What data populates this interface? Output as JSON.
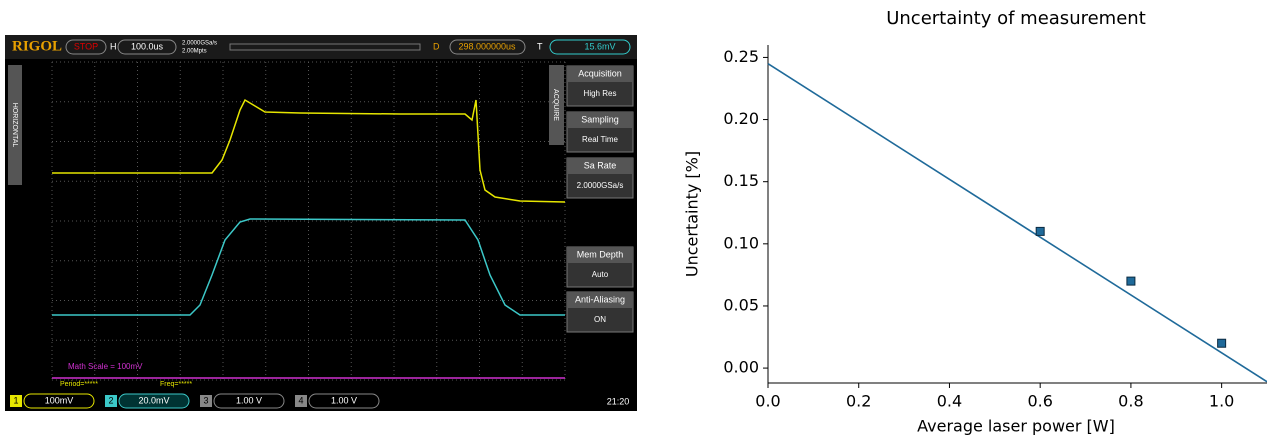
{
  "oscilloscope": {
    "brand": "RIGOL",
    "status": "STOP",
    "h_label": "H",
    "timebase": "100.0us",
    "sample_rate": "2.0000GSa/s",
    "points": "2.00Mpts",
    "d_label": "D",
    "delay": "298.000000us",
    "t_label": "T",
    "trigger": "15.6mV",
    "left_tab": "HORIZONTAL",
    "right_tab": "ACQUIRE",
    "menu": [
      {
        "title": "Acquisition",
        "value": "High Res"
      },
      {
        "title": "Sampling",
        "value": "Real Time"
      },
      {
        "title": "Sa Rate",
        "value": "2.0000GSa/s"
      },
      {
        "title": "Mem Depth",
        "value": "Auto"
      },
      {
        "title": "Anti-Aliasing",
        "value": "ON"
      }
    ],
    "math_scale": "Math Scale = 100mV",
    "period": "Period=*****",
    "freq": "Freq=*****",
    "channels": [
      {
        "id": "1",
        "scale": "100mV"
      },
      {
        "id": "2",
        "scale": "20.0mV"
      },
      {
        "id": "3",
        "scale": "1.00 V"
      },
      {
        "id": "4",
        "scale": "1.00 V"
      }
    ],
    "clock": "21:20"
  },
  "chart_data": {
    "type": "line",
    "title": "Uncertainty of measurement",
    "xlabel": "Average laser power [W]",
    "ylabel": "Uncertainty [%]",
    "series": [
      {
        "style": "line",
        "color": "#1f6a9a",
        "x": [
          0,
          1.1
        ],
        "values": [
          0.245,
          -0.011
        ]
      },
      {
        "style": "markers",
        "color": "#1f6a9a",
        "x": [
          0.6,
          0.8,
          1.0
        ],
        "values": [
          0.11,
          0.07,
          0.02
        ]
      }
    ],
    "xlim": [
      0,
      1.1
    ],
    "ylim": [
      -0.012,
      0.26
    ],
    "xticks": [
      {
        "value": 0,
        "label": "0.0"
      },
      0.2,
      0.4,
      0.6,
      0.8,
      {
        "value": 1,
        "label": "1.0"
      }
    ],
    "yticks": [
      {
        "value": 0,
        "label": "0.00"
      },
      {
        "value": 0.05,
        "label": "0.05"
      },
      {
        "value": 0.1,
        "label": "0.10"
      },
      {
        "value": 0.15,
        "label": "0.15"
      },
      {
        "value": 0.2,
        "label": "0.20"
      },
      {
        "value": 0.25,
        "label": "0.25"
      }
    ]
  }
}
